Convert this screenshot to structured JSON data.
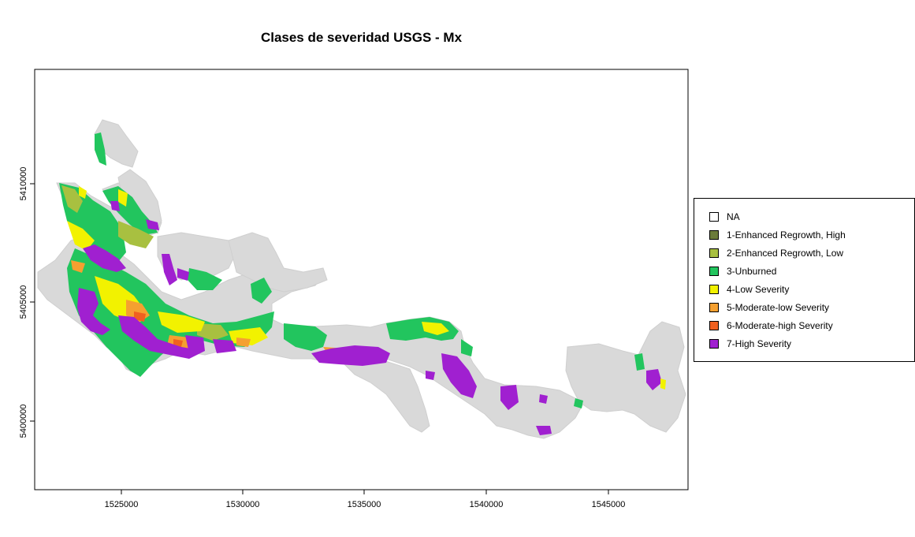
{
  "title": "Clases de severidad USGS - Mx",
  "colors": {
    "unburned_area_gray": "#d9d9d9",
    "enhanced_high": "#6b7b3a",
    "enhanced_low": "#a8c040",
    "unburned": "#22c55e",
    "low": "#f2f200",
    "moderate_low": "#f5a030",
    "moderate_high": "#f06020",
    "high": "#a020d0"
  },
  "axes": {
    "x_ticks": [
      "1525000",
      "1530000",
      "1535000",
      "1540000",
      "1545000"
    ],
    "y_ticks": [
      "5400000",
      "5405000",
      "5410000"
    ]
  },
  "legend": [
    {
      "label": "NA",
      "color": "#ffffff"
    },
    {
      "label": "1-Enhanced Regrowth, High",
      "color": "#6b7b3a"
    },
    {
      "label": "2-Enhanced Regrowth, Low",
      "color": "#a8c040"
    },
    {
      "label": "3-Unburned",
      "color": "#22c55e"
    },
    {
      "label": "4-Low Severity",
      "color": "#f2f200"
    },
    {
      "label": "5-Moderate-low Severity",
      "color": "#f5a030"
    },
    {
      "label": "6-Moderate-high Severity",
      "color": "#f06020"
    },
    {
      "label": "7-High Severity",
      "color": "#a020d0"
    }
  ]
}
